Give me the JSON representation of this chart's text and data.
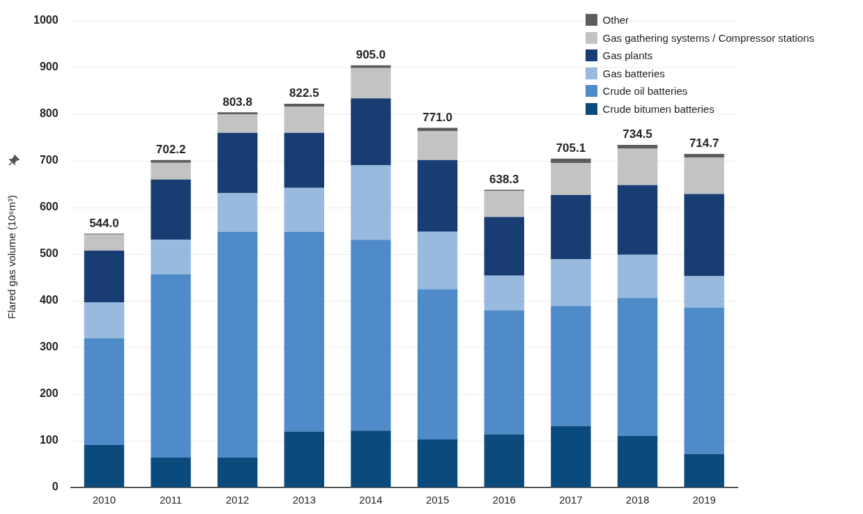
{
  "chart_data": {
    "type": "bar",
    "stacked": true,
    "ylabel": "Flared gas volume (10⁶m³)",
    "categories": [
      "2010",
      "2011",
      "2012",
      "2013",
      "2014",
      "2015",
      "2016",
      "2017",
      "2018",
      "2019"
    ],
    "series": [
      {
        "name": "Crude bitumen batteries",
        "color": "#0b4a7d",
        "values": [
          91,
          64,
          64,
          120,
          122,
          103,
          114,
          132,
          111,
          72
        ]
      },
      {
        "name": "Crude oil batteries",
        "color": "#4f8bc9",
        "values": [
          229,
          393,
          484,
          428,
          409,
          322,
          266,
          257,
          295,
          314
        ]
      },
      {
        "name": "Gas batteries",
        "color": "#97bade",
        "values": [
          77,
          74,
          83,
          94,
          160,
          123,
          74,
          100,
          93,
          67
        ]
      },
      {
        "name": "Gas plants",
        "color": "#173d73",
        "values": [
          111,
          129,
          129,
          118,
          143,
          154,
          126,
          138,
          149,
          176
        ]
      },
      {
        "name": "Gas gathering systems / Compressor stations",
        "color": "#c3c3c3",
        "values": [
          34,
          36,
          40,
          56,
          65,
          62,
          56,
          68,
          78,
          78
        ]
      },
      {
        "name": "Other",
        "color": "#5c5c5c",
        "values": [
          2,
          6,
          4,
          6.5,
          6,
          7,
          2,
          10,
          8.5,
          8
        ]
      }
    ],
    "totals": [
      "544.0",
      "702.2",
      "803.8",
      "822.5",
      "905.0",
      "771.0",
      "638.3",
      "705.1",
      "734.5",
      "714.7"
    ],
    "ylim": [
      0,
      1000
    ],
    "yticks": [
      0,
      100,
      200,
      300,
      400,
      500,
      600,
      700,
      800,
      900,
      1000
    ],
    "grid": "y",
    "legend": "top right"
  }
}
